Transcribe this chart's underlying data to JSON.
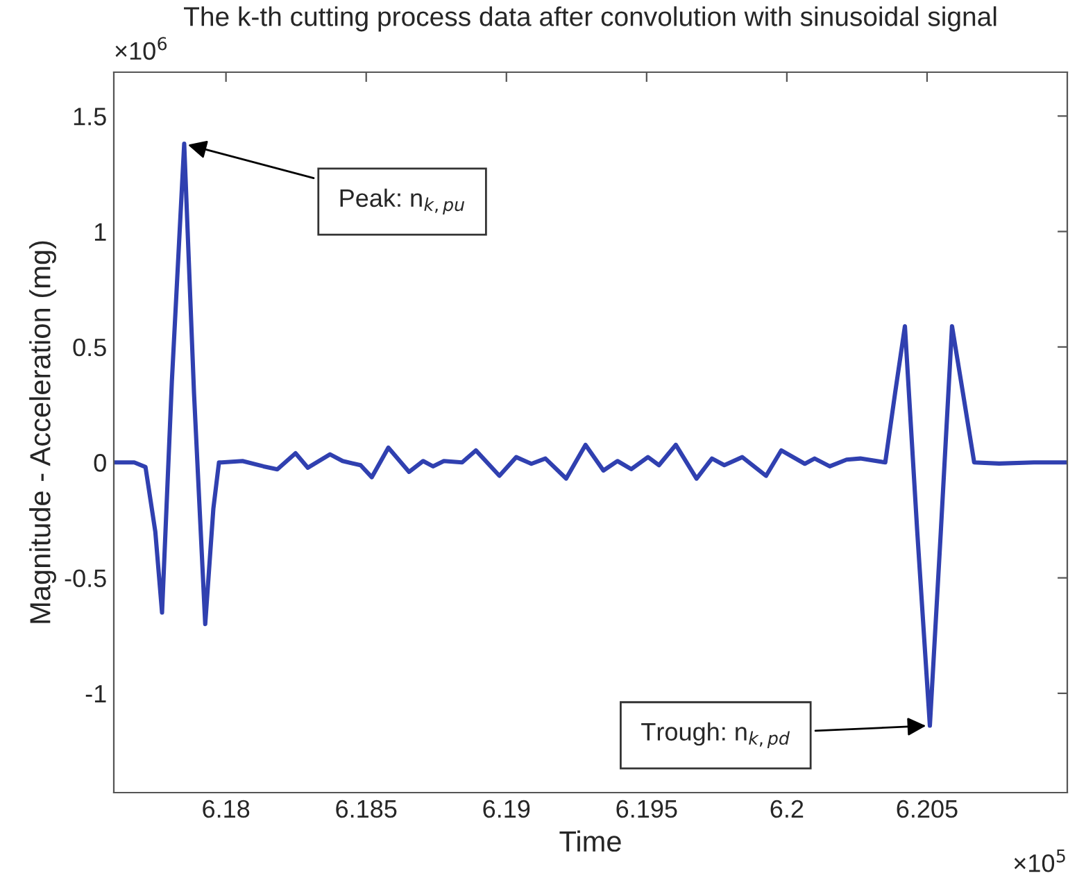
{
  "chart_data": {
    "type": "line",
    "title": "The k-th cutting process data after convolution with sinusoidal signal",
    "xlabel": "Time",
    "ylabel": "Magnitude - Acceleration (mg)",
    "x": [
      6.176,
      6.17673,
      6.17713,
      6.17748,
      6.17772,
      6.17807,
      6.17851,
      6.17886,
      6.17926,
      6.17955,
      6.17975,
      6.17985,
      6.18059,
      6.18134,
      6.18183,
      6.18248,
      6.18292,
      6.18371,
      6.18416,
      6.1848,
      6.1852,
      6.18579,
      6.18653,
      6.18703,
      6.18738,
      6.18777,
      6.18842,
      6.18891,
      6.18975,
      6.19035,
      6.19089,
      6.19139,
      6.19213,
      6.19282,
      6.19346,
      6.19396,
      6.19445,
      6.19505,
      6.19544,
      6.19604,
      6.19678,
      6.19733,
      6.19777,
      6.19841,
      6.19926,
      6.1998,
      6.20064,
      6.20099,
      6.20153,
      6.20213,
      6.20262,
      6.20351,
      6.20386,
      6.20421,
      6.20465,
      6.2051,
      6.20549,
      6.20589,
      6.20628,
      6.20668,
      6.20757,
      6.20881,
      6.21
    ],
    "series": [
      {
        "color": "#3040b0",
        "values": [
          0,
          0,
          -0.02,
          -0.3,
          -0.65,
          0.35,
          1.38,
          0.3,
          -0.7,
          -0.2,
          0,
          0,
          0.006,
          -0.017,
          -0.03,
          0.04,
          -0.023,
          0.035,
          0.006,
          -0.012,
          -0.064,
          0.064,
          -0.041,
          0.006,
          -0.017,
          0.006,
          0,
          0.052,
          -0.058,
          0.023,
          -0.006,
          0.017,
          -0.07,
          0.076,
          -0.035,
          0.006,
          -0.029,
          0.023,
          -0.012,
          0.076,
          -0.07,
          0.017,
          -0.012,
          0.023,
          -0.058,
          0.052,
          -0.006,
          0.017,
          -0.017,
          0.012,
          0.017,
          0,
          0.3,
          0.59,
          -0.3,
          -1.14,
          -0.3,
          0.59,
          0.3,
          0,
          -0.005,
          0,
          0
        ]
      }
    ],
    "xlim": [
      6.176,
      6.21
    ],
    "ylim": [
      -1.43,
      1.69
    ],
    "xticks": [
      6.18,
      6.185,
      6.19,
      6.195,
      6.2,
      6.205
    ],
    "yticks": [
      -1,
      -0.5,
      0,
      0.5,
      1,
      1.5
    ],
    "annotations": [
      {
        "text": "Peak: n$_{k,pu}$",
        "x": 6.17851,
        "y": 1.38
      },
      {
        "text": "Trough: n$_{k,pd}$",
        "x": 6.2051,
        "y": -1.14
      },
      "×10$^{6}$",
      "×10$^{5}$"
    ],
    "grid": false,
    "legend": false,
    "marker": "none",
    "line_style": "solid"
  }
}
